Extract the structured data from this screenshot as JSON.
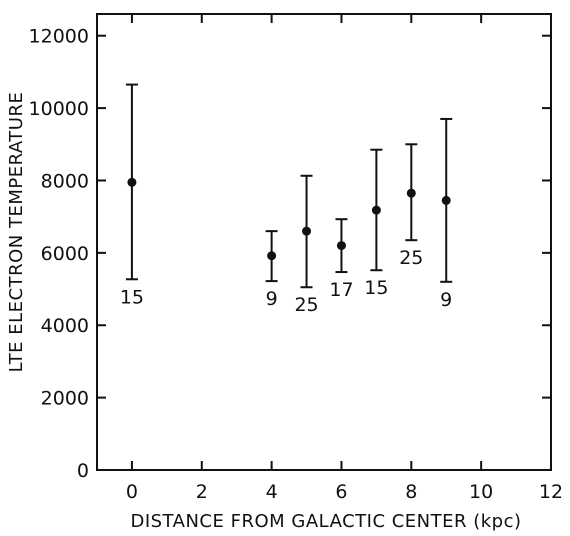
{
  "chart_data": {
    "type": "scatter",
    "title": "",
    "xlabel": "DISTANCE FROM GALACTIC CENTER (kpc)",
    "ylabel": "LTE ELECTRON TEMPERATURE",
    "xlim": [
      -1,
      12
    ],
    "ylim": [
      0,
      12600
    ],
    "x_ticks": [
      0,
      2,
      4,
      6,
      8,
      10,
      12
    ],
    "y_ticks": [
      0,
      2000,
      4000,
      6000,
      8000,
      10000,
      12000
    ],
    "x_tick_labels": [
      "0",
      "2",
      "4",
      "6",
      "8",
      "10",
      "12"
    ],
    "y_tick_labels": [
      "0",
      "2000",
      "4000",
      "6000",
      "8000",
      "10000",
      "12000"
    ],
    "grid": false,
    "legend": "none",
    "colors": {
      "marks": "#111111",
      "background": "#ffffff"
    },
    "points": [
      {
        "x": 0,
        "y": 7950,
        "y_low": 5270,
        "y_high": 10650,
        "n": "15"
      },
      {
        "x": 4,
        "y": 5920,
        "y_low": 5220,
        "y_high": 6600,
        "n": "9"
      },
      {
        "x": 5,
        "y": 6600,
        "y_low": 5050,
        "y_high": 8130,
        "n": "25"
      },
      {
        "x": 6,
        "y": 6200,
        "y_low": 5470,
        "y_high": 6930,
        "n": "17"
      },
      {
        "x": 7,
        "y": 7180,
        "y_low": 5520,
        "y_high": 8850,
        "n": "15"
      },
      {
        "x": 8,
        "y": 7650,
        "y_low": 6350,
        "y_high": 9000,
        "n": "25"
      },
      {
        "x": 9,
        "y": 7450,
        "y_low": 5200,
        "y_high": 9700,
        "n": "9"
      }
    ]
  }
}
